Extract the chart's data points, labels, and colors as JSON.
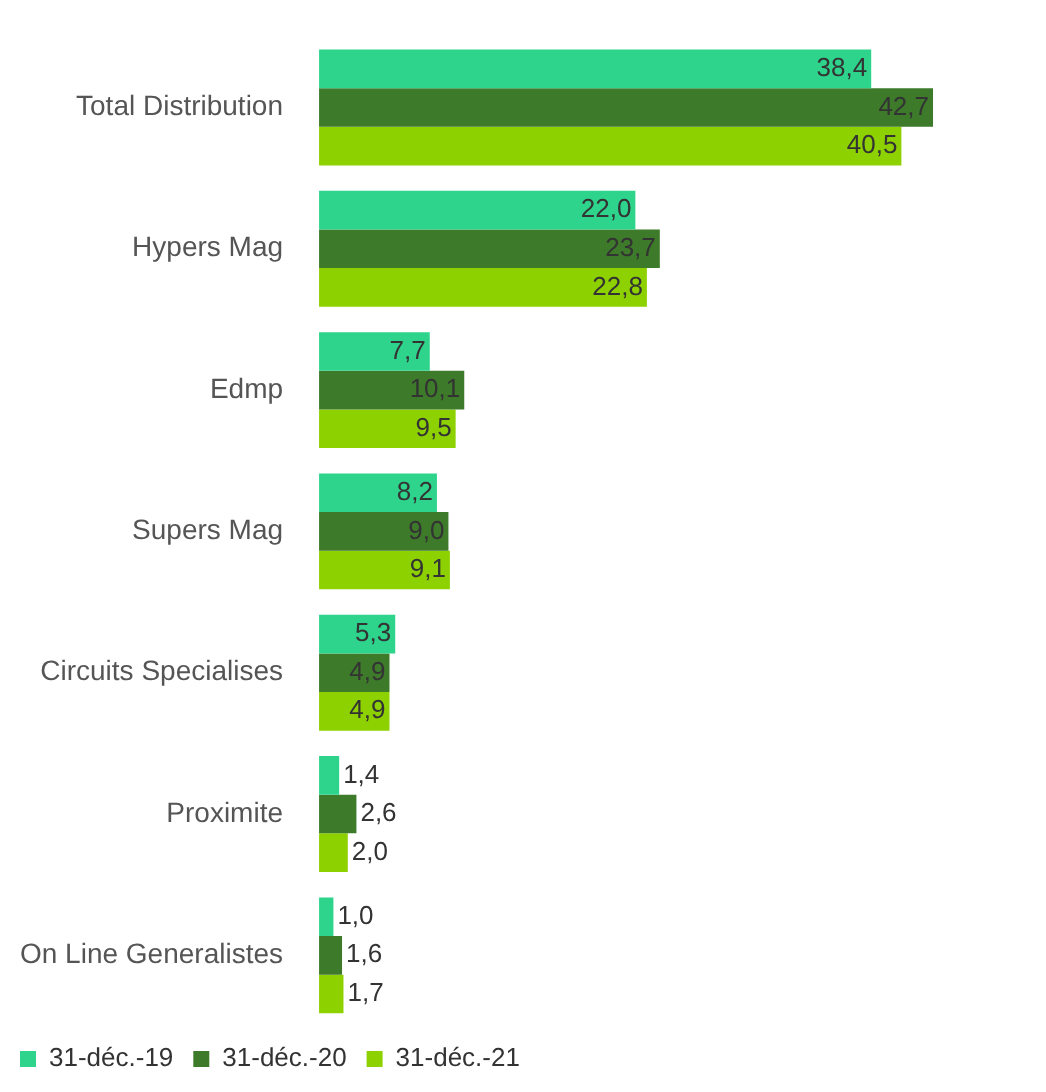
{
  "chart_data": {
    "type": "bar",
    "orientation": "horizontal",
    "legend": "bottom left",
    "categories": [
      "Total Distribution",
      "Hypers Mag",
      "Edmp",
      "Supers Mag",
      "Circuits Specialises",
      "Proximite",
      "On Line Generalistes"
    ],
    "series": [
      {
        "name": "31-déc.-19",
        "color": "#2ed48c",
        "values": [
          38.4,
          22.0,
          7.7,
          8.2,
          5.3,
          1.4,
          1.0
        ],
        "value_labels": [
          "38,4",
          "22,0",
          "7,7",
          "8,2",
          "5,3",
          "1,4",
          "1,0"
        ]
      },
      {
        "name": "31-déc.-20",
        "color": "#3d7a2a",
        "values": [
          42.7,
          23.7,
          10.1,
          9.0,
          4.9,
          2.6,
          1.6
        ],
        "value_labels": [
          "42,7",
          "23,7",
          "10,1",
          "9,0",
          "4,9",
          "2,6",
          "1,6"
        ]
      },
      {
        "name": "31-déc.-21",
        "color": "#8ed100",
        "values": [
          40.5,
          22.8,
          9.5,
          9.1,
          4.9,
          2.0,
          1.7
        ],
        "value_labels": [
          "40,5",
          "22,8",
          "9,5",
          "9,1",
          "4,9",
          "2,0",
          "1,7"
        ]
      }
    ]
  }
}
